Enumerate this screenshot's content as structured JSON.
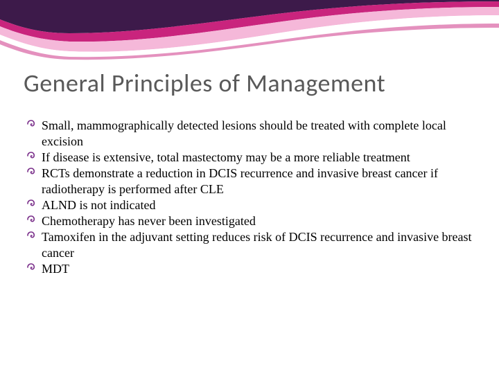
{
  "title": {
    "text": "General Principles of Management",
    "fontsize": 36,
    "color": "#595959"
  },
  "bullets": [
    {
      "text": "Small, mammographically detected lesions should be treated with complete local excision",
      "continuation": false
    },
    {
      "text": "If disease is extensive, total mastectomy may be a more reliable treatment",
      "continuation": false
    },
    {
      "text": "RCTs demonstrate a reduction in DCIS recurrence and invasive breast cancer if radiotherapy is performed after CLE",
      "continuation": false
    },
    {
      "text": "ALND is not indicated",
      "continuation": false
    },
    {
      "text": "Chemotherapy has never been investigated",
      "continuation": false
    },
    {
      "text": "Tamoxifen in the adjuvant setting reduces risk of DCIS recurrence and invasive breast cancer",
      "continuation": false
    },
    {
      "text": "MDT",
      "continuation": false
    }
  ],
  "bullet_style": {
    "icon_color": "#7a2f8a",
    "text_color": "#000000",
    "fontsize": 18,
    "line_height": 1.28
  },
  "wave": {
    "colors": {
      "dark_purple": "#3d1a4a",
      "magenta": "#c9247d",
      "light_pink": "#f5b8d9",
      "white": "#ffffff"
    }
  }
}
